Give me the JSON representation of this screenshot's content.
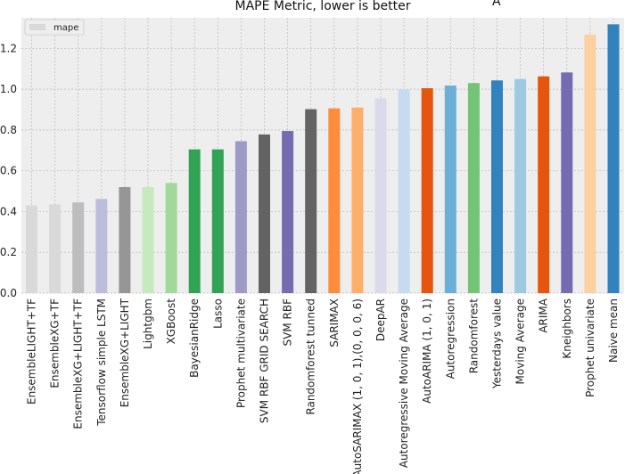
{
  "chart_data": {
    "type": "bar",
    "title": "MAPE Metric, lower is better",
    "corner_text": "A",
    "legend": {
      "label": "mape",
      "placement": "top-left",
      "swatch_color": "#d9d9d9"
    },
    "categories": [
      "EnsembleLIGHT+TF",
      "EnsembleXG+TF",
      "EnsembleXG+LIGHT+TF",
      "Tensorflow simple LSTM",
      "EnsembleXG+LIGHT",
      "Lightgbm",
      "XGBoost",
      "BayesianRidge",
      "Lasso",
      "Prophet multivariate",
      "SVM RBF GRID SEARCH",
      "SVM RBF",
      "Randomforest tunned",
      "SARIMAX",
      "AutoSARIMAX (1, 0, 1),(0, 0, 0, 6)",
      "DeepAR",
      "Autoregressive Moving Average",
      "AutoARIMA (1, 0, 1)",
      "Autoregression",
      "Randomforest",
      "Yesterdays value",
      "Moving Average",
      "ARIMA",
      "Kneighbors",
      "Prophet univariate",
      "Naive mean"
    ],
    "values": [
      0.43,
      0.435,
      0.445,
      0.462,
      0.52,
      0.52,
      0.54,
      0.705,
      0.705,
      0.745,
      0.778,
      0.795,
      0.902,
      0.906,
      0.91,
      0.955,
      1.0,
      1.005,
      1.018,
      1.03,
      1.043,
      1.05,
      1.063,
      1.082,
      1.268,
      1.318
    ],
    "colors": [
      "#d9d9d9",
      "#d9d9d9",
      "#bdbdbd",
      "#bcbddc",
      "#969696",
      "#c7e9c0",
      "#a1d99b",
      "#31a354",
      "#31a354",
      "#9e9ac8",
      "#636363",
      "#756bb1",
      "#636363",
      "#fd8d3c",
      "#fdae6b",
      "#dadaeb",
      "#c6dbef",
      "#e6550d",
      "#6baed6",
      "#74c476",
      "#3182bd",
      "#9ecae1",
      "#e6550d",
      "#756bb1",
      "#fdd0a2",
      "#3182bd"
    ],
    "ylim": [
      0.0,
      1.35
    ],
    "yticks": [
      "0.0",
      "0.2",
      "0.4",
      "0.6",
      "0.8",
      "1.0",
      "1.2"
    ],
    "grid": true,
    "xlabel": "",
    "ylabel": ""
  }
}
